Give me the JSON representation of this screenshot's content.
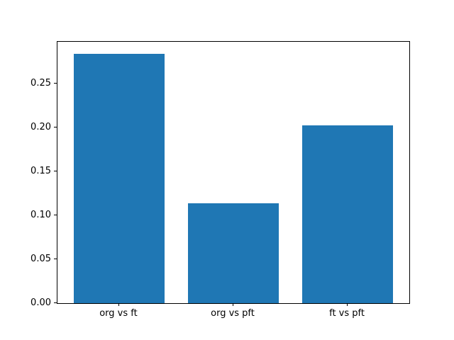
{
  "chart_data": {
    "type": "bar",
    "title": "",
    "xlabel": "",
    "ylabel": "",
    "categories": [
      "org vs ft",
      "org vs pft",
      "ft vs pft"
    ],
    "values": [
      0.284,
      0.114,
      0.203
    ],
    "bar_width": 0.8,
    "bar_color": "#1f77b4",
    "xlim": [
      -0.54,
      2.54
    ],
    "ylim": [
      0,
      0.298
    ],
    "ytick_values": [
      0.0,
      0.05,
      0.1,
      0.15,
      0.2,
      0.25
    ],
    "ytick_labels": [
      "0.00",
      "0.05",
      "0.10",
      "0.15",
      "0.20",
      "0.25"
    ],
    "grid": false,
    "legend": "none",
    "spine_color": "#000000",
    "background_color": "#ffffff"
  }
}
